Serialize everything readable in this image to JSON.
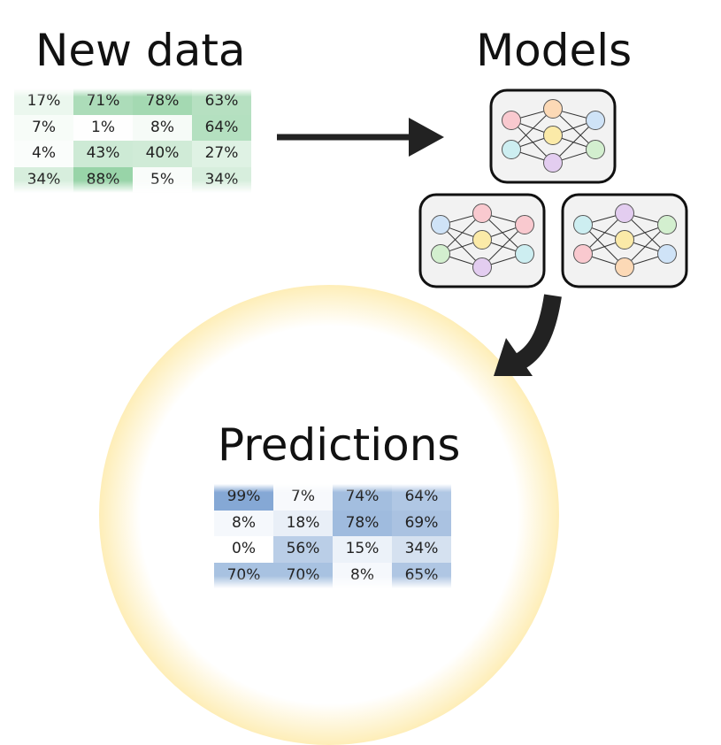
{
  "new_data": {
    "title": "New data",
    "rows": [
      [
        "17%",
        "71%",
        "78%",
        "63%"
      ],
      [
        "7%",
        "1%",
        "8%",
        "64%"
      ],
      [
        "4%",
        "43%",
        "40%",
        "27%"
      ],
      [
        "34%",
        "88%",
        "5%",
        "34%"
      ]
    ]
  },
  "models": {
    "title": "Models"
  },
  "predictions": {
    "title": "Predictions",
    "rows": [
      [
        "99%",
        "7%",
        "74%",
        "64%"
      ],
      [
        "8%",
        "18%",
        "78%",
        "69%"
      ],
      [
        "0%",
        "56%",
        "15%",
        "34%"
      ],
      [
        "70%",
        "70%",
        "8%",
        "65%"
      ]
    ]
  }
}
